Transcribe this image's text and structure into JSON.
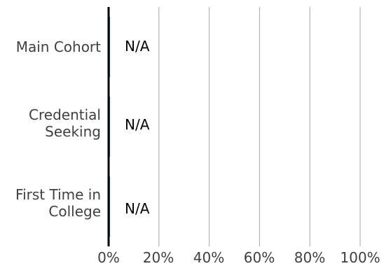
{
  "chart_data": {
    "type": "bar",
    "orientation": "horizontal",
    "categories": [
      "Main Cohort",
      "Credential\nSeeking",
      "First Time in\nCollege"
    ],
    "values": [
      0,
      0,
      0
    ],
    "data_labels": [
      "N/A",
      "N/A",
      "N/A"
    ],
    "x_ticks": [
      "0%",
      "20%",
      "40%",
      "60%",
      "80%",
      "100%"
    ],
    "xlim": [
      0,
      100
    ],
    "grid": true,
    "colors": {
      "bar": "#2e75b6",
      "axis": "#000000",
      "grid": "#a6a6a6",
      "text": "#404040"
    }
  }
}
